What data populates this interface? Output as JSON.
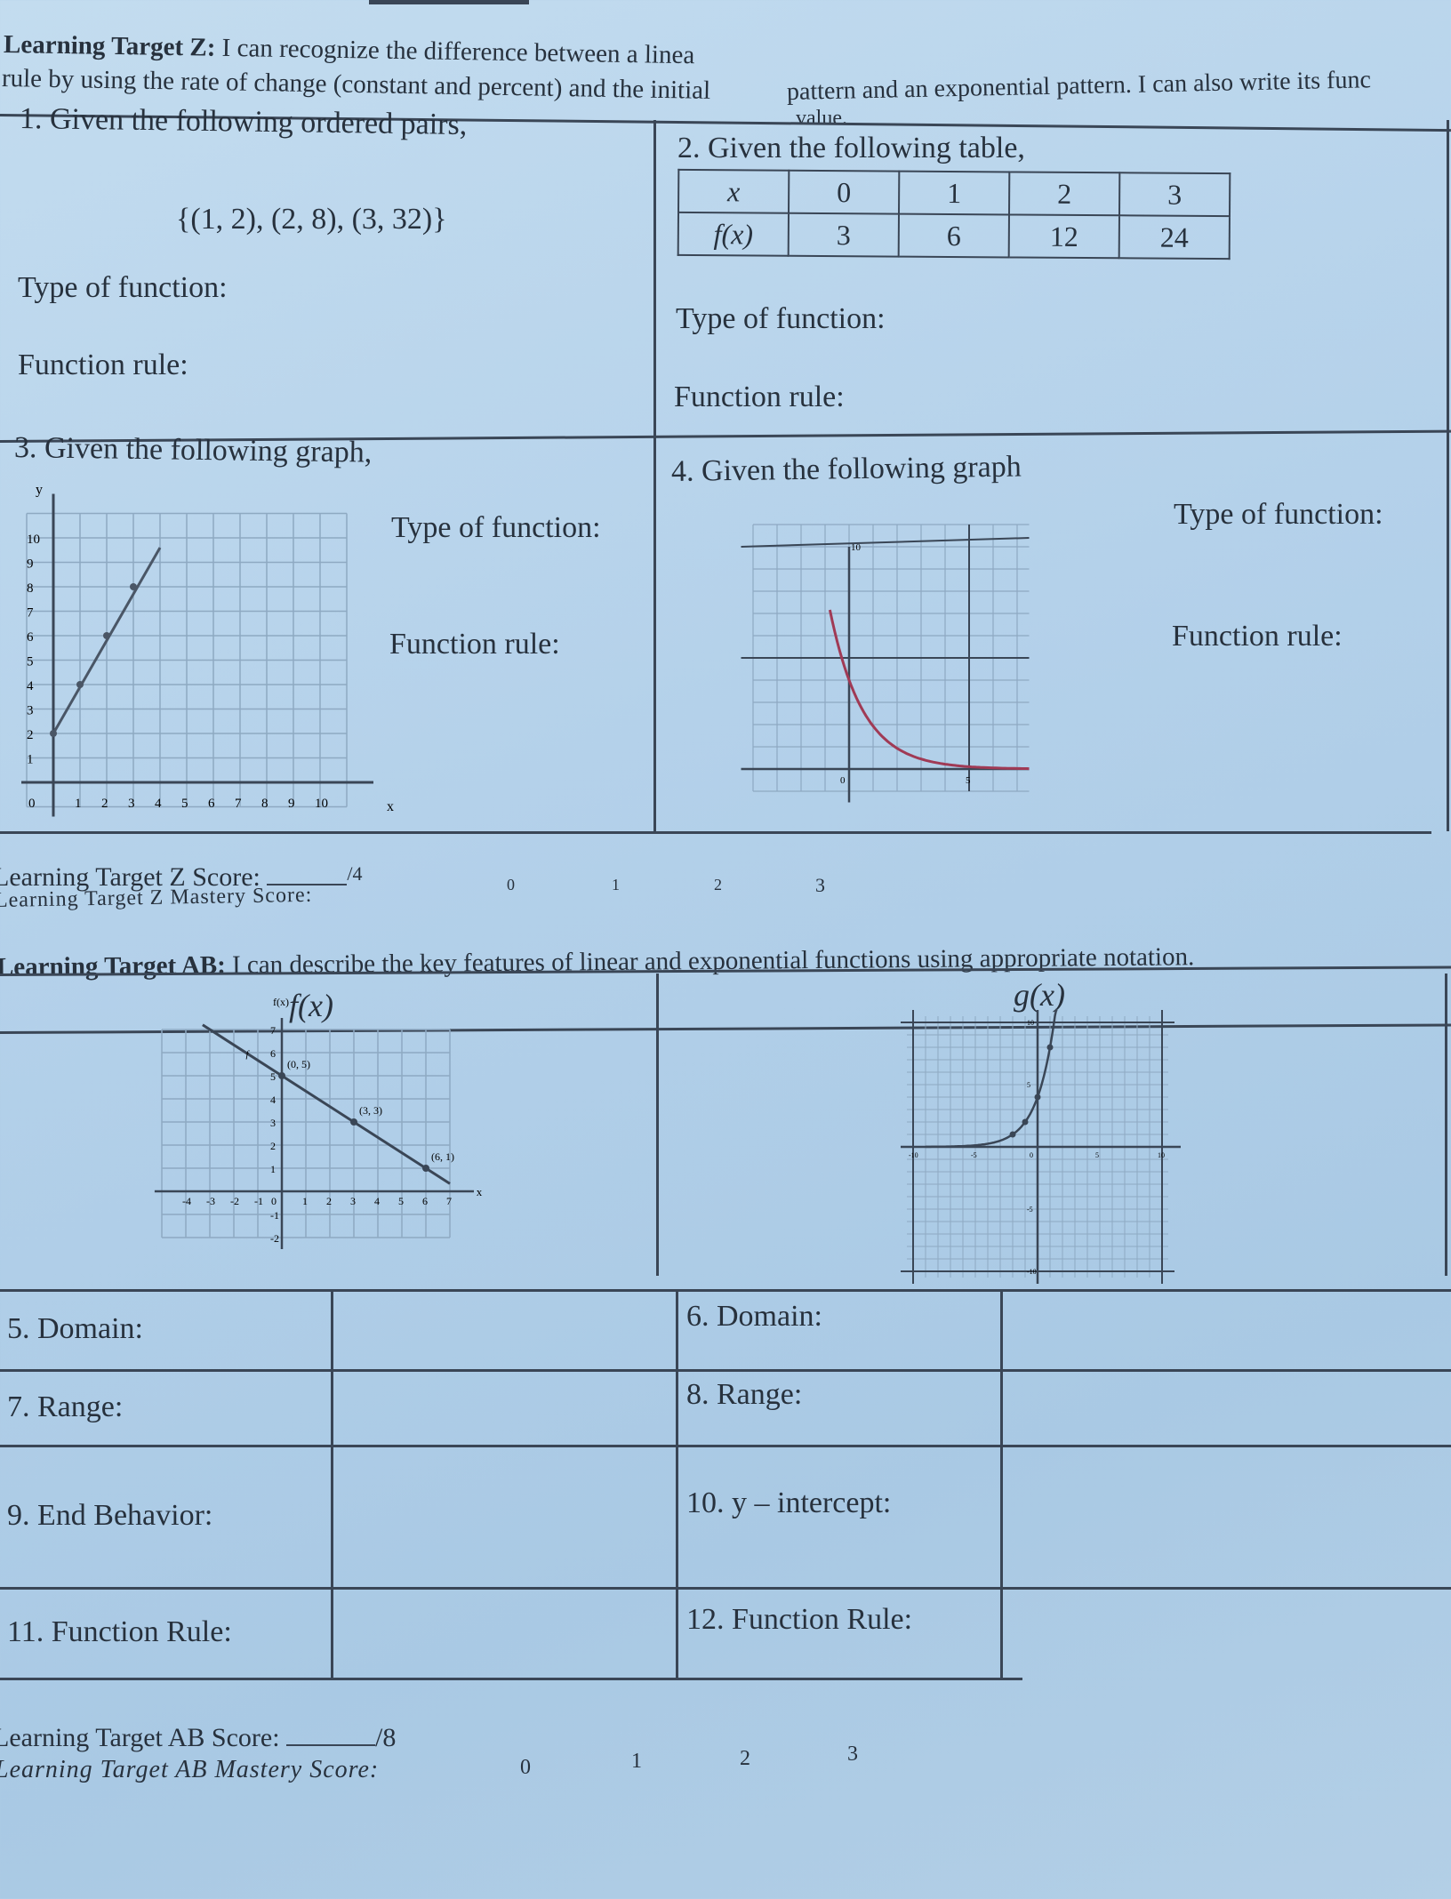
{
  "header": {
    "target_z_label": "Learning Target Z:",
    "target_z_line1a": "I can recognize the difference between a linea",
    "target_z_line1b": "pattern and an exponential pattern. I can also write its func",
    "target_z_line2a": "rule by using the rate of change (constant and percent) and the initial",
    "target_z_line2b": "value."
  },
  "q1": {
    "prompt": "1.  Given the following ordered pairs,",
    "set": "{(1, 2), (2, 8), (3, 32)}",
    "type_label": "Type of function:",
    "rule_label": "Function rule:"
  },
  "q2": {
    "prompt": "2.  Given the following table,",
    "table": {
      "x_label": "x",
      "fx_label": "f(x)",
      "x": [
        "0",
        "1",
        "2",
        "3"
      ],
      "fx": [
        "3",
        "6",
        "12",
        "24"
      ]
    },
    "type_label": "Type of function:",
    "rule_label": "Function rule:"
  },
  "q3": {
    "prompt": "3.  Given the following graph,",
    "type_label": "Type of function:",
    "rule_label": "Function rule:",
    "graph": {
      "x_label": "x",
      "y_label": "y",
      "x_ticks": [
        "0",
        "1",
        "2",
        "3",
        "4",
        "5",
        "6",
        "7",
        "8",
        "9",
        "10"
      ],
      "y_ticks": [
        "1",
        "2",
        "3",
        "4",
        "5",
        "6",
        "7",
        "8",
        "9",
        "10"
      ],
      "points": [
        [
          0,
          2
        ],
        [
          1,
          4
        ],
        [
          2,
          6
        ],
        [
          3,
          8
        ]
      ],
      "line_end": [
        4,
        9.6
      ],
      "xlim": [
        0,
        11
      ],
      "ylim": [
        0,
        11
      ]
    }
  },
  "q4": {
    "prompt": "4.  Given the following graph",
    "type_label": "Type of function:",
    "rule_label": "Function rule:",
    "graph": {
      "tick_top": "10",
      "tick_origin": "0",
      "tick_right": "5",
      "curve_color": "#a03a55",
      "xlim": [
        -4,
        7
      ],
      "ylim": [
        -1,
        11
      ]
    }
  },
  "score_z": {
    "label": "Learning Target Z Score:",
    "out_of": "/4",
    "mastery_label": "Learning Target Z Mastery Score:",
    "levels": [
      "0",
      "1",
      "2",
      "3"
    ]
  },
  "target_ab": {
    "label": "Learning Target AB:",
    "text": "I can describe the key features of linear and exponential functions using appropriate notation."
  },
  "ab_table": {
    "f_header": "f(x)",
    "g_header": "g(x)",
    "f_graph": {
      "y_label": "f(x)",
      "x_label": "x",
      "line_label": "f",
      "points": [
        {
          "x": 0,
          "y": 5,
          "label": "(0, 5)"
        },
        {
          "x": 3,
          "y": 3,
          "label": "(3, 3)"
        },
        {
          "x": 6,
          "y": 1,
          "label": "(6, 1)"
        }
      ],
      "x_ticks": [
        "-4",
        "-3",
        "-2",
        "-1",
        "0",
        "1",
        "2",
        "3",
        "4",
        "5",
        "6",
        "7"
      ],
      "y_ticks": [
        "-2",
        "-1",
        "1",
        "2",
        "3",
        "4",
        "5",
        "6",
        "7"
      ]
    },
    "g_graph": {
      "ticks": [
        "-10",
        "-5",
        "0",
        "5",
        "10"
      ]
    },
    "rows": [
      {
        "left": "5.  Domain:",
        "right": "6.  Domain:"
      },
      {
        "left": "7.  Range:",
        "right": "8.  Range:"
      },
      {
        "left": "9.  End Behavior:",
        "right": "10. y – intercept:"
      },
      {
        "left": "11. Function Rule:",
        "right": "12. Function Rule:"
      }
    ]
  },
  "score_ab": {
    "label": "Learning Target AB Score:",
    "out_of": "/8",
    "mastery_label": "Learning Target AB Mastery Score:",
    "levels": [
      "0",
      "1",
      "2",
      "3"
    ]
  }
}
